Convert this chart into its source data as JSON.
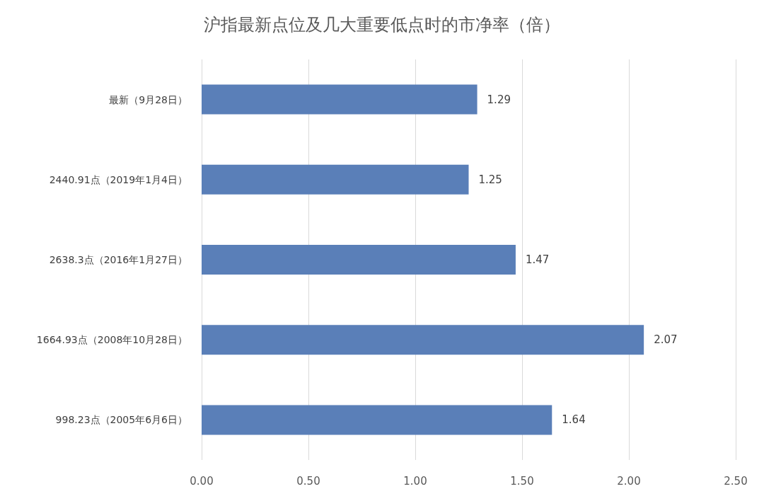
{
  "chart_data": {
    "type": "bar",
    "orientation": "horizontal",
    "title": "沪指最新点位及几大重要低点时的市净率（倍）",
    "categories": [
      "最新（9月28日）",
      "2440.91点（2019年1月4日）",
      "2638.3点（2016年1月27日）",
      "1664.93点（2008年10月28日）",
      "998.23点（2005年6月6日）"
    ],
    "values": [
      1.29,
      1.25,
      1.47,
      2.07,
      1.64
    ],
    "color": "#5a7fb8",
    "xlim": [
      0,
      2.5
    ],
    "xticks": [
      {
        "value": 0,
        "label": "0.00"
      },
      {
        "value": 0.5,
        "label": "0.50"
      },
      {
        "value": 1,
        "label": "1.00"
      },
      {
        "value": 1.5,
        "label": "1.50"
      },
      {
        "value": 2,
        "label": "2.00"
      },
      {
        "value": 2.5,
        "label": "2.50"
      }
    ],
    "grid": "x",
    "data_labels": true
  }
}
